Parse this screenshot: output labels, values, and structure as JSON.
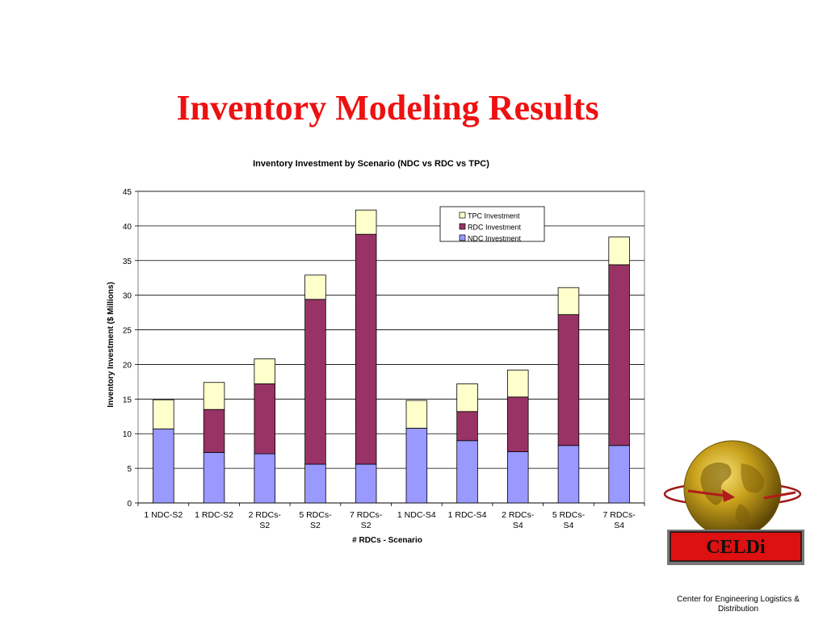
{
  "slide": {
    "title": "Inventory Modeling Results"
  },
  "chart_data": {
    "type": "bar",
    "stacked": true,
    "title": "Inventory Investment by Scenario (NDC vs RDC vs TPC)",
    "xlabel": "# RDCs - Scenario",
    "ylabel": "Inventory Investment ($ Millions)",
    "ylim": [
      0,
      45
    ],
    "yticks": [
      0,
      5,
      10,
      15,
      20,
      25,
      30,
      35,
      40,
      45
    ],
    "grid": true,
    "legend_position": "top-right",
    "categories": [
      [
        "1 NDC-S2"
      ],
      [
        "1 RDC-S2"
      ],
      [
        "2 RDCs-",
        "S2"
      ],
      [
        "5 RDCs-",
        "S2"
      ],
      [
        "7 RDCs-",
        "S2"
      ],
      [
        "1 NDC-S4"
      ],
      [
        "1 RDC-S4"
      ],
      [
        "2 RDCs-",
        "S4"
      ],
      [
        "5 RDCs-",
        "S4"
      ],
      [
        "7 RDCs-",
        "S4"
      ]
    ],
    "series": [
      {
        "name": "NDC Investment",
        "color": "#9999ff",
        "values": [
          10.7,
          7.3,
          7.1,
          5.6,
          5.6,
          10.8,
          9.0,
          7.4,
          8.3,
          8.3
        ]
      },
      {
        "name": "RDC Investment",
        "color": "#993366",
        "values": [
          0.0,
          6.2,
          10.1,
          23.8,
          33.2,
          0.0,
          4.2,
          7.9,
          18.9,
          26.1
        ]
      },
      {
        "name": "TPC Investment",
        "color": "#ffffcc",
        "values": [
          4.2,
          3.9,
          3.6,
          3.5,
          3.5,
          4.0,
          4.0,
          3.9,
          3.9,
          4.0
        ]
      }
    ],
    "legend_order": [
      "TPC Investment",
      "RDC Investment",
      "NDC Investment"
    ]
  },
  "logo": {
    "text": "CELDi",
    "org_name": "Center for Engineering Logistics  & Distribution"
  }
}
